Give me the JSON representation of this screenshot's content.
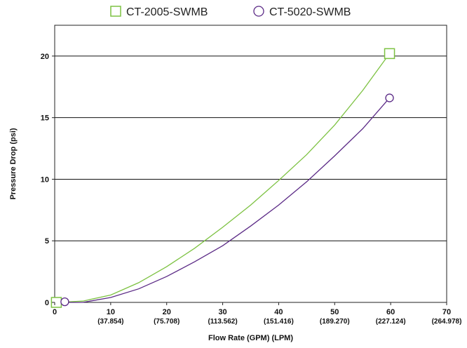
{
  "chart_data": {
    "type": "line",
    "xlabel": "Flow Rate (GPM) (LPM)",
    "ylabel": "Pressure Drop (psi)",
    "xlim": [
      0,
      70
    ],
    "ylim": [
      0,
      22.5
    ],
    "x_ticks": [
      {
        "value": 0,
        "label": "0",
        "sublabel": ""
      },
      {
        "value": 10,
        "label": "10",
        "sublabel": "(37.854)"
      },
      {
        "value": 20,
        "label": "20",
        "sublabel": "(75.708)"
      },
      {
        "value": 30,
        "label": "30",
        "sublabel": "(113.562)"
      },
      {
        "value": 40,
        "label": "40",
        "sublabel": "(151.416)"
      },
      {
        "value": 50,
        "label": "50",
        "sublabel": "(189.270)"
      },
      {
        "value": 60,
        "label": "60",
        "sublabel": "(227.124)"
      },
      {
        "value": 70,
        "label": "70",
        "sublabel": "(264.978)"
      }
    ],
    "y_ticks": [
      {
        "value": 0,
        "label": "0"
      },
      {
        "value": 5,
        "label": "5"
      },
      {
        "value": 10,
        "label": "10"
      },
      {
        "value": 15,
        "label": "15"
      },
      {
        "value": 20,
        "label": "20"
      }
    ],
    "grid": "horizontal",
    "legend_position": "top-center",
    "series": [
      {
        "name": "CT-2005-SWMB",
        "color": "#7dc242",
        "marker": "square",
        "x": [
          0.3,
          5,
          10,
          15,
          20,
          25,
          30,
          35,
          40,
          45,
          50,
          55,
          59.8
        ],
        "y": [
          0.0,
          0.1,
          0.6,
          1.6,
          2.9,
          4.4,
          6.1,
          7.9,
          9.9,
          12.0,
          14.4,
          17.2,
          20.2
        ],
        "markers": [
          {
            "x": 0.3,
            "y": 0.0
          },
          {
            "x": 59.8,
            "y": 20.2
          }
        ]
      },
      {
        "name": "CT-5020-SWMB",
        "color": "#5b2a86",
        "marker": "circle",
        "x": [
          1.8,
          5,
          10,
          15,
          20,
          25,
          30,
          35,
          40,
          45,
          50,
          55,
          59.8
        ],
        "y": [
          0.0,
          0.0,
          0.4,
          1.1,
          2.1,
          3.3,
          4.6,
          6.2,
          7.9,
          9.8,
          11.9,
          14.1,
          16.6
        ],
        "markers": [
          {
            "x": 1.8,
            "y": 0.05
          },
          {
            "x": 59.8,
            "y": 16.6
          }
        ]
      }
    ]
  }
}
